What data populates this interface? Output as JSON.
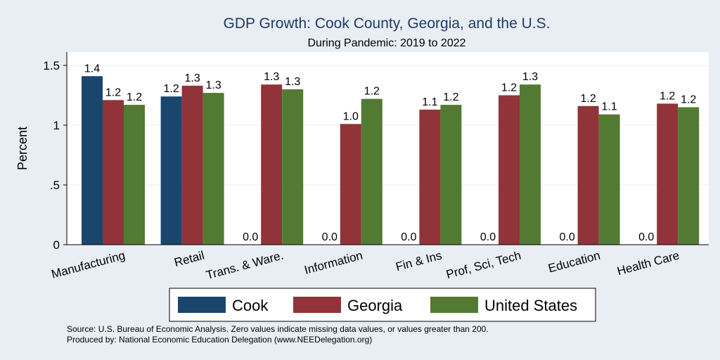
{
  "chart_data": {
    "type": "bar",
    "title": "GDP Growth: Cook County, Georgia, and the U.S.",
    "subtitle": "During Pandemic: 2019 to 2022",
    "ylabel": "Percent",
    "ylim": [
      0,
      1.6
    ],
    "yticks": [
      0,
      0.5,
      1,
      1.5
    ],
    "ytick_labels": [
      "0",
      ".5",
      "1",
      "1.5"
    ],
    "grid": true,
    "legend_position": "bottom",
    "categories": [
      "Manufacturing",
      "Retail",
      "Trans. & Ware.",
      "Information",
      "Fin & Ins",
      "Prof, Sci, Tech",
      "Education",
      "Health Care"
    ],
    "series": [
      {
        "name": "Cook",
        "color": "#1a466e",
        "values": [
          1.41,
          1.24,
          0,
          0,
          0,
          0,
          0,
          0
        ],
        "labels": [
          "1.4",
          "1.2",
          "0.0",
          "0.0",
          "0.0",
          "0.0",
          "0.0",
          "0.0"
        ]
      },
      {
        "name": "Georgia",
        "color": "#903439",
        "values": [
          1.21,
          1.33,
          1.34,
          1.01,
          1.13,
          1.25,
          1.16,
          1.18
        ],
        "labels": [
          "1.2",
          "1.3",
          "1.3",
          "1.0",
          "1.1",
          "1.2",
          "1.2",
          "1.2"
        ]
      },
      {
        "name": "United States",
        "color": "#537a33",
        "values": [
          1.17,
          1.27,
          1.3,
          1.22,
          1.17,
          1.34,
          1.09,
          1.15
        ],
        "labels": [
          "1.2",
          "1.3",
          "1.3",
          "1.2",
          "1.2",
          "1.3",
          "1.1",
          "1.2"
        ]
      }
    ],
    "notes": [
      "Source: U.S. Bureau of Economic Analysis. Zero values indicate missing data values, or values greater than 200.",
      "Produced by: National Economic Education Delegation (www.NEEDelegation.org)"
    ]
  }
}
